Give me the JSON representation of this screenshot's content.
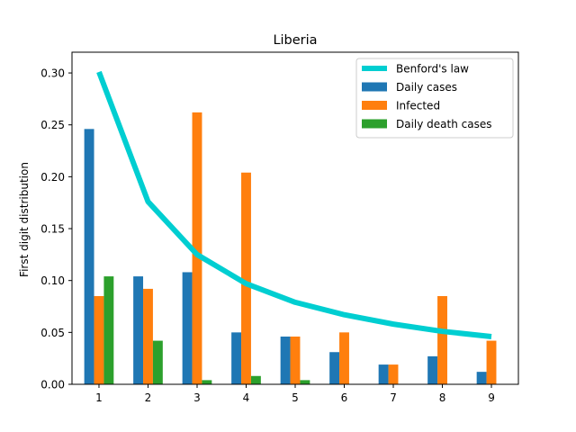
{
  "chart_data": {
    "type": "bar",
    "title": "Liberia",
    "xlabel": "",
    "ylabel": "First digit distribution",
    "categories": [
      "1",
      "2",
      "3",
      "4",
      "5",
      "6",
      "7",
      "8",
      "9"
    ],
    "x": [
      1,
      2,
      3,
      4,
      5,
      6,
      7,
      8,
      9
    ],
    "ylim": [
      0,
      0.32
    ],
    "yticks": [
      0.0,
      0.05,
      0.1,
      0.15,
      0.2,
      0.25,
      0.3
    ],
    "ytick_labels": [
      "0.00",
      "0.05",
      "0.10",
      "0.15",
      "0.20",
      "0.25",
      "0.30"
    ],
    "grid": false,
    "legend_position": "top-right",
    "line_series": {
      "name": "Benford's law",
      "color": "#00CED1",
      "values": [
        0.301,
        0.176,
        0.125,
        0.097,
        0.079,
        0.067,
        0.058,
        0.051,
        0.046
      ]
    },
    "series": [
      {
        "name": "Daily cases",
        "color": "#1f77b4",
        "values": [
          0.246,
          0.104,
          0.108,
          0.05,
          0.046,
          0.031,
          0.019,
          0.027,
          0.012
        ]
      },
      {
        "name": "Infected",
        "color": "#ff7f0e",
        "values": [
          0.085,
          0.092,
          0.262,
          0.204,
          0.046,
          0.05,
          0.019,
          0.085,
          0.042
        ]
      },
      {
        "name": "Daily death cases",
        "color": "#2ca02c",
        "values": [
          0.104,
          0.042,
          0.004,
          0.008,
          0.004,
          0.0,
          0.0,
          0.0,
          0.0
        ]
      }
    ]
  }
}
